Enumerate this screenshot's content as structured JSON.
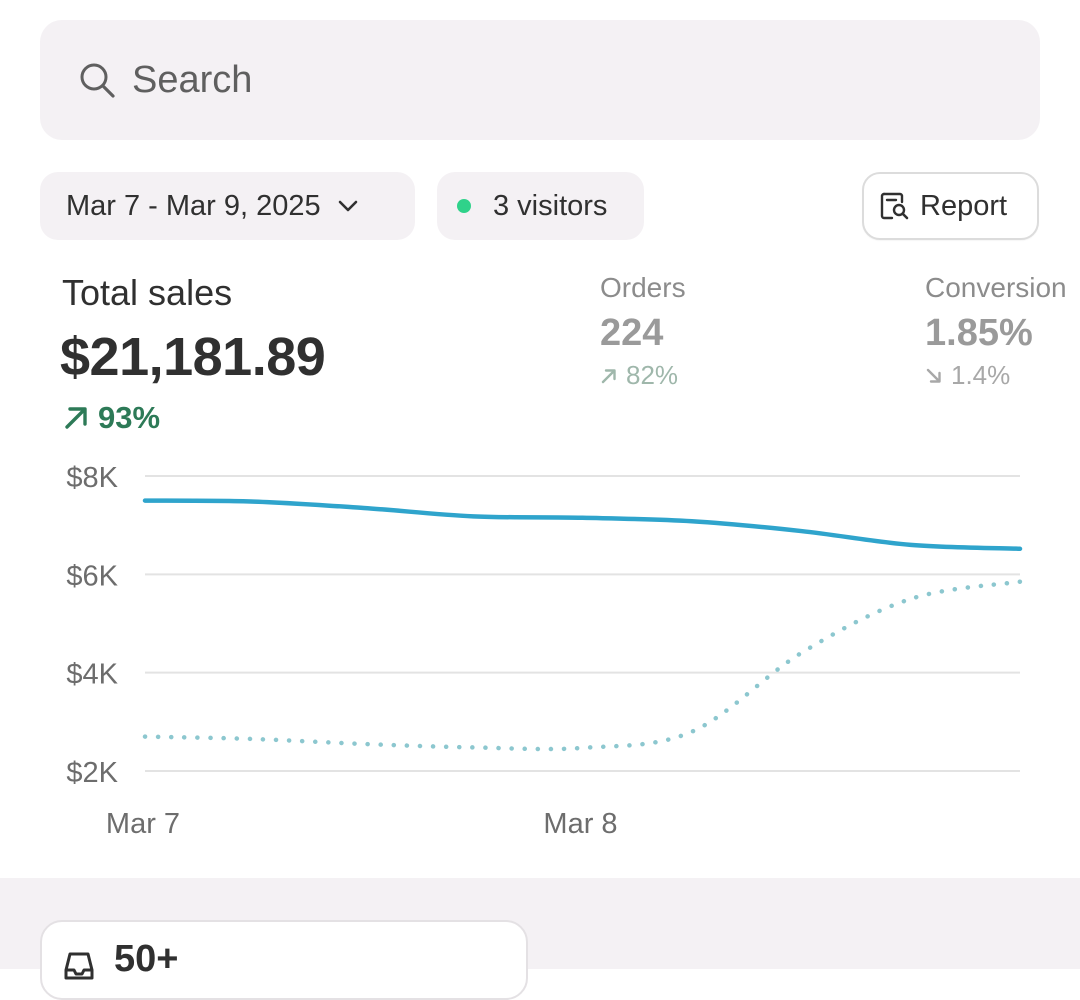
{
  "search": {
    "placeholder": "Search"
  },
  "filters": {
    "date_range": "Mar 7 - Mar 9, 2025",
    "visitors": "3 visitors",
    "report": "Report"
  },
  "metrics": {
    "total_sales": {
      "label": "Total sales",
      "value": "$21,181.89",
      "delta": "93%",
      "direction": "up"
    },
    "orders": {
      "label": "Orders",
      "value": "224",
      "delta": "82%",
      "direction": "up"
    },
    "conversion": {
      "label": "Conversion",
      "value": "1.85%",
      "delta": "1.4%",
      "direction": "down"
    }
  },
  "colors": {
    "accent_line": "#2fa4cc",
    "compare_line": "#8cc7cf",
    "positive": "#2d7a57",
    "live_dot": "#2fd28a"
  },
  "chart_data": {
    "type": "line",
    "y_tick_labels": [
      "$8K",
      "$6K",
      "$4K",
      "$2K"
    ],
    "y_ticks": [
      8000,
      6000,
      4000,
      2000
    ],
    "ylim": [
      2000,
      8000
    ],
    "x_tick_labels": [
      "Mar 7",
      "Mar 8"
    ],
    "x_ticks": [
      0,
      1
    ],
    "xlim": [
      0,
      2
    ],
    "grid": true,
    "series": [
      {
        "style": "solid",
        "x": [
          0,
          0.25,
          0.5,
          0.75,
          1.0,
          1.25,
          1.5,
          1.75,
          2.0
        ],
        "y": [
          7500,
          7480,
          7350,
          7180,
          7150,
          7080,
          6880,
          6600,
          6520
        ]
      },
      {
        "style": "dotted",
        "x": [
          0,
          0.25,
          0.5,
          0.75,
          1.0,
          1.25,
          1.5,
          1.75,
          2.0
        ],
        "y": [
          2700,
          2650,
          2550,
          2480,
          2470,
          2800,
          4400,
          5500,
          5850
        ]
      }
    ]
  },
  "summary_card": {
    "value": "50+"
  }
}
